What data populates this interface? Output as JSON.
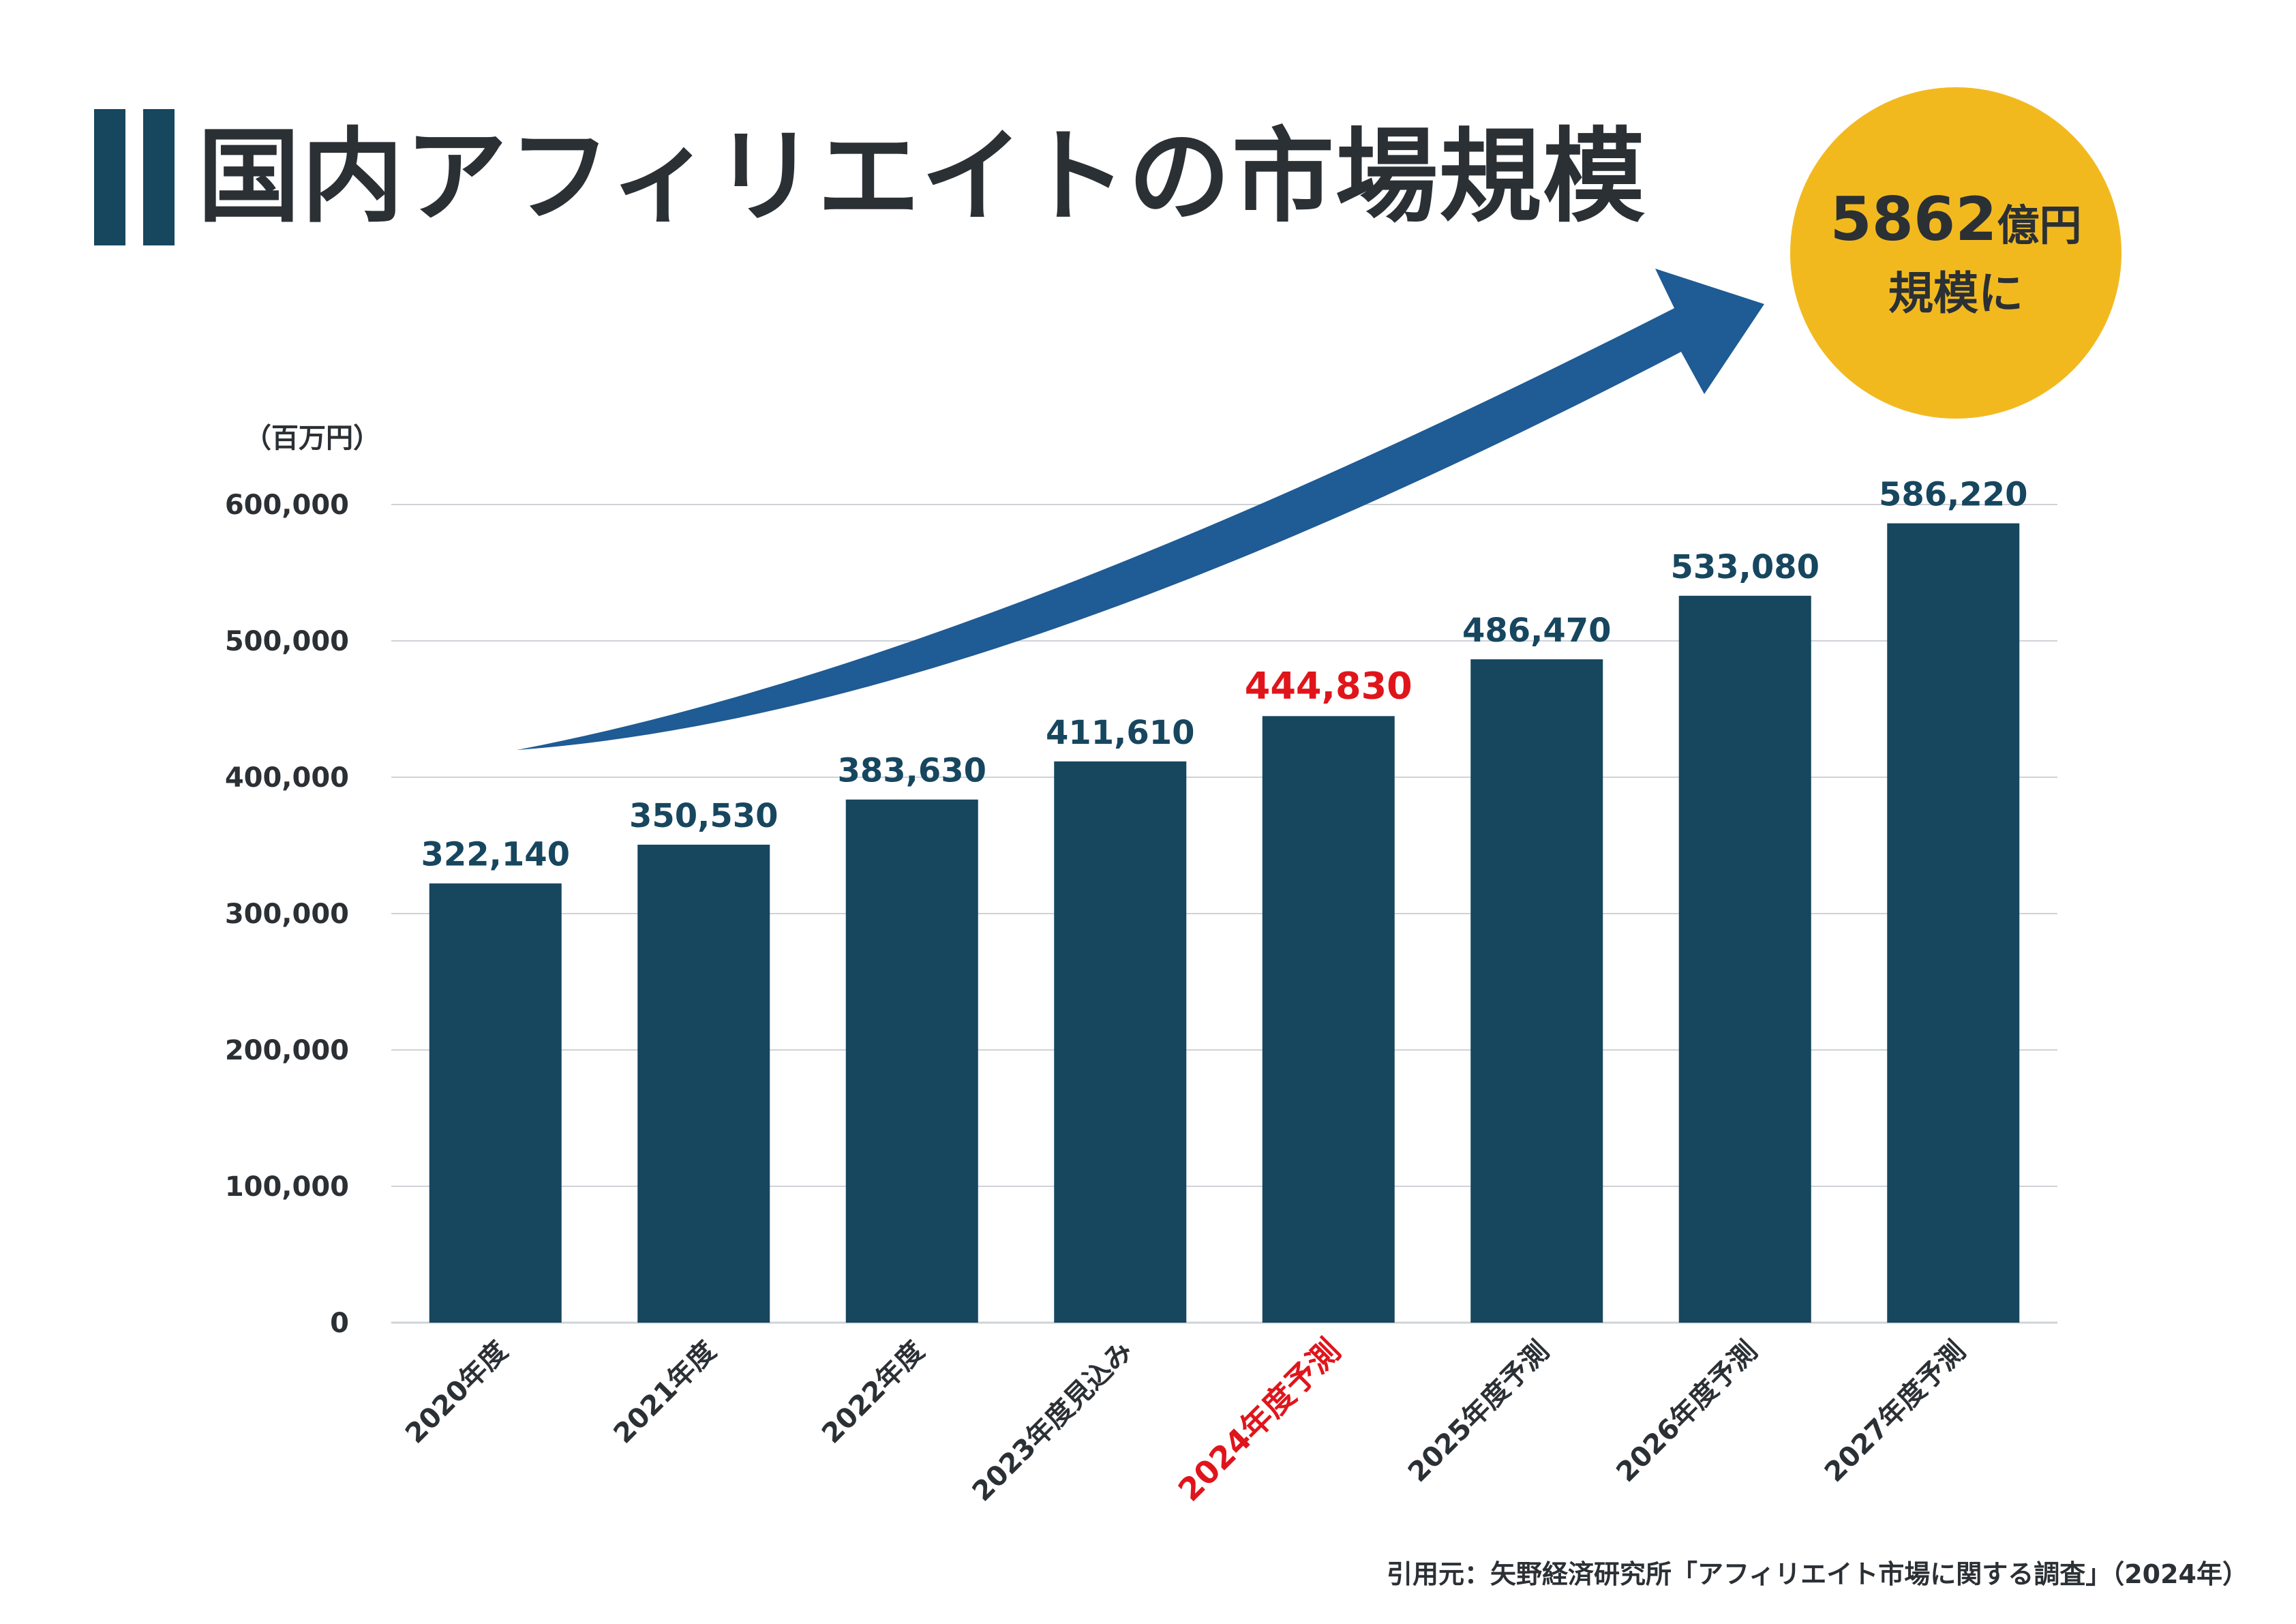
{
  "header": {
    "title": "国内アフィリエイトの市場規模"
  },
  "badge": {
    "amount": "5862",
    "unit": "億円",
    "line2": "規模に"
  },
  "chart_data": {
    "type": "bar",
    "title": "国内アフィリエイトの市場規模",
    "unit_label": "（百万円）",
    "xlabel": "",
    "ylabel": "",
    "ylim": [
      0,
      600000
    ],
    "y_ticks": [
      {
        "value": 0,
        "label": "0"
      },
      {
        "value": 100000,
        "label": "100,000"
      },
      {
        "value": 200000,
        "label": "200,000"
      },
      {
        "value": 300000,
        "label": "300,000"
      },
      {
        "value": 400000,
        "label": "400,000"
      },
      {
        "value": 500000,
        "label": "500,000"
      },
      {
        "value": 600000,
        "label": "600,000"
      }
    ],
    "grid": true,
    "categories": [
      "2020年度",
      "2021年度",
      "2022年度",
      "2023年度見込み",
      "2024年度予測",
      "2025年度予測",
      "2026年度予測",
      "2027年度予測"
    ],
    "values": [
      322140,
      350530,
      383630,
      411610,
      444830,
      486470,
      533080,
      586220
    ],
    "value_labels": [
      "322,140",
      "350,530",
      "383,630",
      "411,610",
      "444,830",
      "486,470",
      "533,080",
      "586,220"
    ],
    "highlight_index": 4
  },
  "source": {
    "text": "引用元：矢野経済研究所「アフィリエイト市場に関する調査」（2024年）"
  },
  "colors": {
    "bar": "#17465f",
    "title_bar": "#17465f",
    "highlight": "#e0151b",
    "arrow": "#1f5b94",
    "badge": "#f2b91f",
    "grid": "#cfd3d7",
    "text": "#2b3035"
  }
}
